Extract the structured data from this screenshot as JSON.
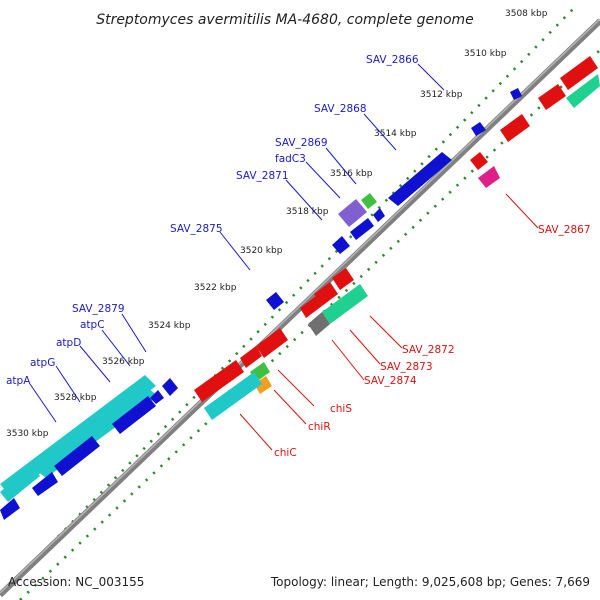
{
  "title": "Streptomyces avermitilis MA-4680, complete genome",
  "footer": {
    "accession": "Accession: NC_003155",
    "summary": "Topology: linear; Length: 9,025,608 bp; Genes: 7,669"
  },
  "ticks": [
    "3508 kbp",
    "3510 kbp",
    "3512 kbp",
    "3514 kbp",
    "3516 kbp",
    "3518 kbp",
    "3520 kbp",
    "3522 kbp",
    "3524 kbp",
    "3526 kbp",
    "3528 kbp",
    "3530 kbp"
  ],
  "forward_labels": [
    "SAV_2866",
    "SAV_2868",
    "SAV_2869",
    "fadC3",
    "SAV_2871",
    "SAV_2875",
    "SAV_2879",
    "atpC",
    "atpD",
    "atpG",
    "atpA"
  ],
  "reverse_labels": [
    "SAV_2867",
    "SAV_2872",
    "SAV_2873",
    "SAV_2874",
    "chiS",
    "chiR",
    "chiC"
  ],
  "colors": {
    "forward_label": "#1a1acc",
    "reverse_label": "#dd1111",
    "backbone": "#808080",
    "tick_dots": "#2a8a2a",
    "blue_gene": "#1010d0",
    "cyan_gene": "#20c8c8",
    "red_gene": "#e01010",
    "green_gene": "#20d090",
    "purple_gene": "#8060d0",
    "magenta_gene": "#e0208a",
    "grey_gene": "#707070",
    "orange_gene": "#f0a020",
    "lime_gene": "#40c040"
  }
}
